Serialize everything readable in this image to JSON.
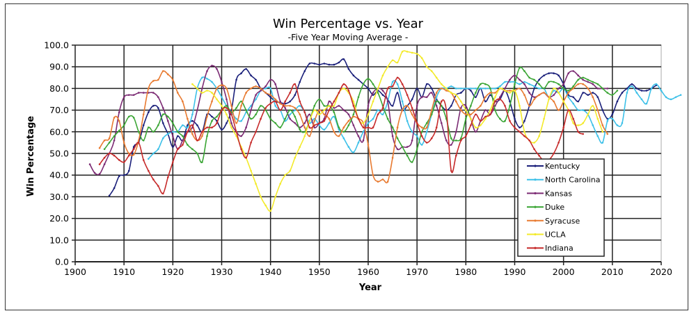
{
  "chart_data": {
    "type": "line",
    "title": "Win Percentage vs. Year",
    "subtitle": "-Five Year Moving Average -",
    "xlabel": "Year",
    "ylabel": "Win Percentage",
    "xlim": [
      1900,
      2020
    ],
    "ylim": [
      0,
      100
    ],
    "x_ticks": [
      "1900",
      "1910",
      "1920",
      "1930",
      "1940",
      "1950",
      "1960",
      "1970",
      "1980",
      "1990",
      "2000",
      "2010",
      "2020"
    ],
    "y_ticks": [
      "0.0",
      "10.0",
      "20.0",
      "30.0",
      "40.0",
      "50.0",
      "60.0",
      "70.0",
      "80.0",
      "90.0",
      "100.0"
    ],
    "grid": true,
    "legend_position": "bottom-right",
    "series": [
      {
        "name": "Kentucky",
        "color": "#1a1f7a",
        "start": 1907,
        "values": [
          30.5,
          34,
          39.5,
          40,
          42,
          53,
          55,
          63,
          69,
          72,
          71,
          64,
          59,
          53,
          58,
          56,
          63,
          65,
          63,
          60,
          68,
          67,
          65,
          61,
          64,
          70,
          84,
          87,
          89,
          86,
          84,
          80,
          78,
          76,
          74,
          73.5,
          73,
          74,
          77,
          83,
          88,
          91.5,
          91.5,
          91,
          91.5,
          91,
          91,
          92,
          93.5,
          89,
          86,
          84,
          82,
          80,
          77,
          79,
          77,
          75,
          72,
          78,
          70,
          72,
          75,
          80,
          76,
          82,
          80,
          75,
          72,
          70,
          72,
          77,
          78,
          80,
          79,
          76,
          80,
          74,
          77,
          74,
          75,
          79,
          74,
          66,
          62,
          65,
          72,
          80,
          84,
          86,
          87,
          87,
          86,
          82,
          77,
          76,
          74,
          78,
          77,
          78,
          76,
          70,
          66,
          68,
          74,
          78,
          80,
          82,
          80,
          79,
          79,
          80,
          81.5
        ]
      },
      {
        "name": "North Carolina",
        "color": "#3cc0e8",
        "start": 1915,
        "values": [
          47.5,
          50,
          52,
          57,
          59,
          60,
          60,
          63,
          62,
          68,
          80,
          85,
          84.5,
          83,
          80,
          76,
          72,
          69,
          66,
          65,
          69,
          72,
          75,
          79,
          80,
          80,
          72,
          70,
          65,
          68,
          70,
          72,
          69,
          64,
          66,
          63,
          61,
          64,
          67,
          61,
          57,
          53,
          50.5,
          55,
          60,
          64,
          66,
          70,
          68,
          74,
          83,
          82,
          74,
          65,
          60,
          58,
          54,
          60,
          68,
          76,
          80,
          80,
          81,
          80,
          80,
          80,
          80,
          80,
          80,
          80,
          80,
          80,
          81,
          83,
          83,
          83,
          82,
          83,
          82,
          81,
          80,
          80,
          76,
          79,
          78,
          80,
          76,
          73,
          70,
          70,
          68,
          63,
          58,
          55,
          65,
          66,
          63,
          64,
          78,
          81,
          78,
          75,
          73,
          80,
          82,
          79,
          76,
          75,
          76,
          77
        ]
      },
      {
        "name": "Kansas",
        "color": "#7b2a73",
        "start": 1903,
        "values": [
          45,
          41,
          40.5,
          45,
          50,
          56,
          69,
          76,
          77,
          77,
          78,
          78,
          78,
          78,
          76,
          71,
          65,
          58,
          52,
          56,
          60,
          62,
          70,
          80,
          88,
          90.5,
          89,
          83,
          75,
          64,
          60,
          58,
          62,
          70,
          77,
          79,
          81,
          84,
          82,
          74,
          71,
          66,
          64,
          62,
          64,
          68,
          62,
          64,
          66,
          74,
          71,
          72,
          70,
          68,
          63,
          58,
          56,
          72,
          78,
          80,
          79,
          74,
          58,
          52,
          53,
          53,
          56,
          72,
          76,
          76,
          78,
          72,
          64,
          56,
          54,
          60,
          71,
          72,
          66,
          60,
          65,
          70,
          68,
          72,
          76,
          80,
          84,
          86,
          84,
          82,
          78,
          76,
          77,
          78,
          76,
          77,
          80,
          82,
          87,
          88,
          86,
          84,
          83,
          82,
          80,
          80,
          80
        ]
      },
      {
        "name": "Duke",
        "color": "#3aa534",
        "start": 1906,
        "values": [
          52,
          55,
          58,
          60.5,
          63,
          67,
          66.5,
          60,
          56,
          62,
          60,
          63,
          68,
          67,
          64,
          60,
          58,
          54,
          52,
          50,
          46,
          58,
          65,
          67,
          70,
          72,
          69,
          71,
          74,
          70,
          66,
          68,
          72,
          70,
          66,
          64,
          62,
          66,
          70,
          67,
          61,
          60,
          65,
          72,
          75,
          72,
          72,
          69,
          62,
          60,
          63,
          68,
          76,
          82,
          84.5,
          82,
          78,
          72,
          66,
          62,
          57,
          53,
          49,
          46,
          52,
          60,
          64,
          68,
          74,
          72,
          66,
          57,
          56,
          57,
          66,
          72,
          78,
          82,
          82,
          80,
          70,
          66,
          65,
          72,
          82,
          89.5,
          88,
          85,
          84,
          82,
          80,
          83,
          83,
          82,
          80,
          79,
          81,
          84,
          85,
          84,
          83,
          82,
          80,
          78,
          77,
          79
        ]
      },
      {
        "name": "Syracuse",
        "color": "#e87a30",
        "start": 1905,
        "values": [
          52.5,
          56,
          57,
          66.5,
          65,
          55,
          50,
          49.5,
          56,
          68,
          80,
          83.5,
          84,
          88,
          86.5,
          84,
          78,
          74,
          66,
          59,
          56,
          58,
          67,
          74,
          80,
          81.5,
          80,
          72,
          64,
          72,
          78,
          80,
          81,
          80,
          78,
          77,
          75,
          73,
          72,
          72,
          71,
          68,
          62,
          58,
          65,
          70,
          68,
          66,
          60,
          58,
          62,
          65,
          67,
          66,
          64,
          54,
          40,
          37,
          38,
          37,
          48,
          62,
          70,
          72,
          68,
          64,
          62,
          62,
          70,
          78,
          80,
          79,
          78,
          74,
          70,
          68,
          68,
          70,
          72,
          76,
          78,
          78,
          80,
          79,
          79,
          79,
          80,
          77,
          72,
          75,
          77,
          78,
          76,
          74,
          70,
          74,
          78,
          80,
          82,
          82,
          80,
          76,
          70,
          63,
          59
        ]
      },
      {
        "name": "UCLA",
        "color": "#f3ea2a",
        "start": 1924,
        "values": [
          82,
          80,
          78,
          79,
          78,
          75,
          72,
          68,
          62,
          58,
          53,
          48,
          42,
          36,
          30,
          26,
          23.5,
          30,
          36,
          40,
          42,
          48,
          53,
          58,
          65,
          70,
          68,
          70,
          72,
          72,
          78,
          80,
          78,
          74,
          66,
          64,
          68,
          74,
          80,
          86,
          90,
          93,
          92,
          97,
          97,
          96.5,
          96,
          94,
          90,
          88,
          85,
          82,
          80,
          78,
          77,
          74,
          70,
          66,
          62,
          63,
          66,
          70,
          76,
          80,
          79,
          78,
          79,
          72,
          60,
          56,
          55,
          58,
          66,
          75,
          80,
          78,
          74,
          70,
          64,
          63,
          64,
          68,
          72,
          66,
          60
        ]
      },
      {
        "name": "Indiana",
        "color": "#c62a2a",
        "start": 1905,
        "values": [
          45,
          48,
          50,
          49,
          47,
          46,
          49,
          52,
          55,
          47,
          42,
          38,
          35,
          31.5,
          39,
          46,
          52,
          54,
          60,
          63,
          56,
          60,
          62,
          62,
          64,
          70,
          71,
          68,
          60,
          52,
          48,
          55,
          60,
          66,
          71,
          73,
          74,
          70,
          74,
          78,
          82,
          74,
          69,
          62,
          63,
          64,
          65,
          70,
          74,
          78,
          82,
          79,
          72,
          66,
          62,
          62,
          62,
          68,
          71,
          80,
          81,
          85,
          82,
          77,
          71,
          64,
          58,
          55,
          57,
          62,
          74,
          70,
          42,
          49,
          56,
          58,
          63,
          68,
          65,
          67,
          68,
          74,
          75,
          72,
          65,
          62,
          60,
          58,
          56,
          52,
          49,
          46.5,
          47,
          50,
          55,
          62,
          70,
          66,
          60,
          59
        ]
      }
    ]
  }
}
